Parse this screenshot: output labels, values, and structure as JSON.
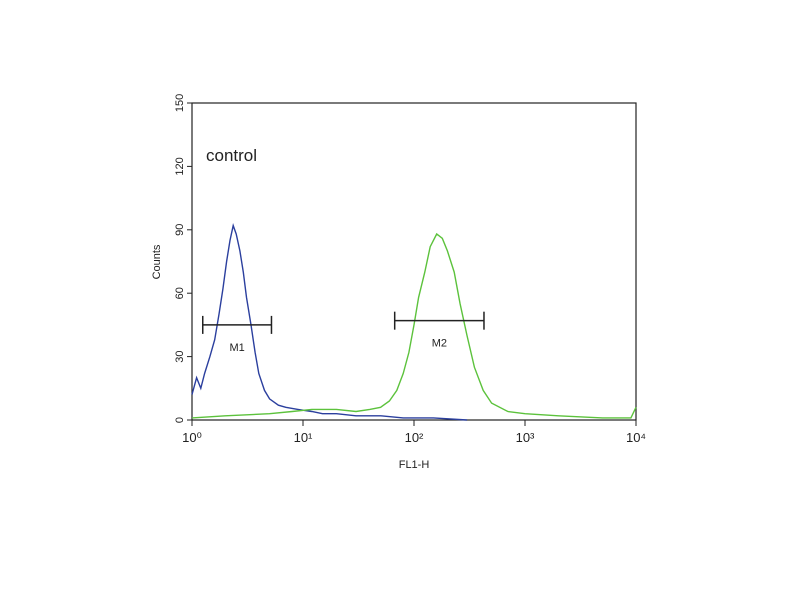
{
  "chart_data": {
    "type": "line",
    "annotation": "control",
    "xlabel": "FL1-H",
    "ylabel": "Counts",
    "xscale": "log",
    "xlim": [
      1,
      10000
    ],
    "ylim": [
      0,
      150
    ],
    "xticks": [
      {
        "value": 1,
        "label": "10⁰"
      },
      {
        "value": 10,
        "label": "10¹"
      },
      {
        "value": 100,
        "label": "10²"
      },
      {
        "value": 1000,
        "label": "10³"
      },
      {
        "value": 10000,
        "label": "10⁴"
      }
    ],
    "yticks": [
      0,
      30,
      60,
      90,
      120,
      150
    ],
    "series": [
      {
        "color": "#2b3f9e",
        "x": [
          1.0,
          1.1,
          1.2,
          1.3,
          1.45,
          1.6,
          1.75,
          1.9,
          2.05,
          2.2,
          2.35,
          2.5,
          2.7,
          2.9,
          3.1,
          3.4,
          3.7,
          4.0,
          4.5,
          5,
          6,
          7,
          9,
          12,
          15,
          20,
          30,
          50,
          80,
          100,
          150,
          300
        ],
        "values": [
          12,
          20,
          15,
          22,
          30,
          38,
          50,
          62,
          75,
          85,
          92,
          88,
          80,
          70,
          58,
          45,
          32,
          22,
          14,
          10,
          7,
          6,
          5,
          4,
          3,
          3,
          2,
          2,
          1,
          1,
          1,
          0
        ]
      },
      {
        "color": "#5cc23c",
        "x": [
          1,
          2,
          5,
          8,
          12,
          20,
          30,
          40,
          50,
          60,
          70,
          80,
          90,
          100,
          110,
          125,
          140,
          160,
          180,
          200,
          230,
          260,
          300,
          350,
          420,
          500,
          700,
          1000,
          2000,
          5000,
          9000,
          10000
        ],
        "values": [
          1,
          2,
          3,
          4,
          5,
          5,
          4,
          5,
          6,
          9,
          14,
          22,
          32,
          45,
          58,
          70,
          82,
          88,
          86,
          80,
          70,
          55,
          40,
          25,
          14,
          8,
          4,
          3,
          2,
          1,
          1,
          6
        ]
      }
    ],
    "markers": [
      {
        "label": "M1",
        "range": [
          1.25,
          5.2
        ],
        "y": 45
      },
      {
        "label": "M2",
        "range": [
          67,
          427
        ],
        "y": 47
      }
    ]
  }
}
